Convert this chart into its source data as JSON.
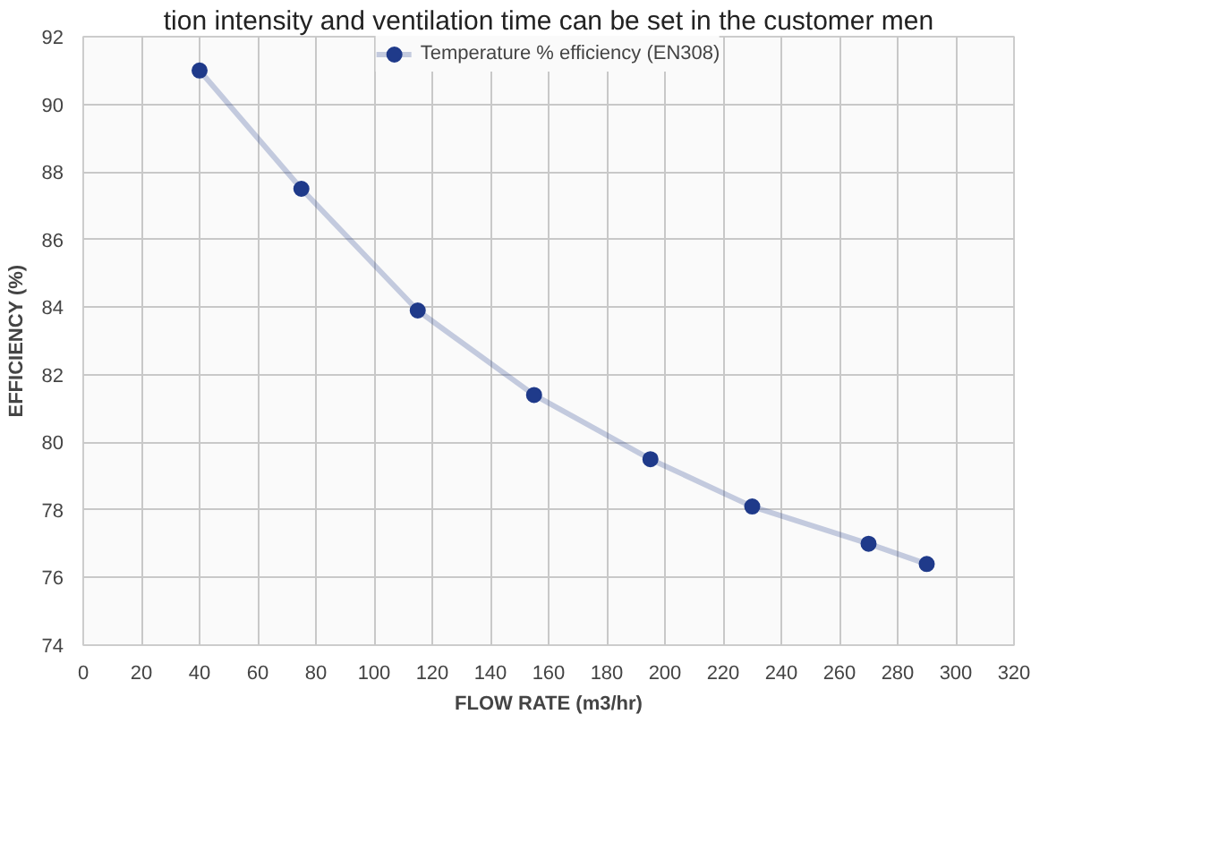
{
  "chart_data": {
    "type": "line",
    "xlabel": "FLOW RATE (m3/hr)",
    "ylabel": "EFFICIENCY (%)",
    "annotations": [
      "tion intensity and ventilation time can be set in the customer men"
    ],
    "x": [
      40,
      75,
      115,
      155,
      195,
      230,
      270,
      290
    ],
    "series": [
      {
        "name": "Temperature % efficiency (EN308)",
        "color": "#1f3a8a",
        "values": [
          91,
          87.5,
          83.9,
          81.4,
          79.5,
          78.1,
          77.0,
          76.4
        ]
      }
    ],
    "xlim": [
      0,
      320
    ],
    "xticks": [
      0,
      20,
      40,
      60,
      80,
      100,
      120,
      140,
      160,
      180,
      200,
      220,
      240,
      260,
      280,
      300,
      320
    ],
    "ylim": [
      74,
      92
    ],
    "yticks": [
      74,
      76,
      78,
      80,
      82,
      84,
      86,
      88,
      90,
      92
    ],
    "grid": true,
    "legend": "top",
    "marker": "circle",
    "line_style": "solid"
  }
}
